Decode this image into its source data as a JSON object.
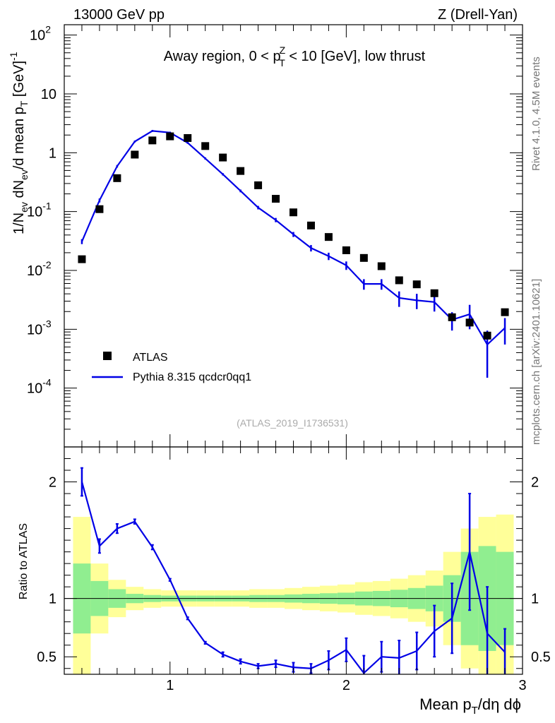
{
  "header": {
    "left": "13000 GeV pp",
    "right": "Z (Drell-Yan)"
  },
  "side_labels": {
    "rivet": "Rivet 4.1.0,  4.5M events",
    "mcplots": "mcplots.cern.ch [arXiv:2401.10621]"
  },
  "colors": {
    "mc": "#0000e6",
    "data": "#000000",
    "band_inner": "#90ee90",
    "band_outer": "#ffff99"
  },
  "chart_data": [
    {
      "type": "scatter",
      "title": "Away region, 0 < pTZ < 10 [GeV], low thrust",
      "title_parts": {
        "pre": "Away region, 0 < p",
        "sup": "Z",
        "sub": "T",
        "post": " < 10 [GeV], low thrust"
      },
      "ylabel": "1/Nev dNev/d mean pT [GeV]-1",
      "yscale": "log",
      "ylim": [
        1e-05,
        150
      ],
      "xlim": [
        0.4,
        3.0
      ],
      "yticks": [
        {
          "v": 100,
          "mant": "10",
          "exp": "2"
        },
        {
          "v": 10,
          "mant": "10",
          "exp": ""
        },
        {
          "v": 1,
          "mant": "1",
          "exp": ""
        },
        {
          "v": 0.1,
          "mant": "10",
          "exp": "-1"
        },
        {
          "v": 0.01,
          "mant": "10",
          "exp": "-2"
        },
        {
          "v": 0.001,
          "mant": "10",
          "exp": "-3"
        },
        {
          "v": 0.0001,
          "mant": "10",
          "exp": "-4"
        }
      ],
      "watermark": "(ATLAS_2019_I1736531)",
      "legend": {
        "position": "bottom-left",
        "data_label": "ATLAS",
        "mc_label": "Pythia 8.315 qcdcr0qq1"
      },
      "series": [
        {
          "name": "ATLAS",
          "kind": "markers",
          "x": [
            0.5,
            0.6,
            0.7,
            0.8,
            0.9,
            1.0,
            1.1,
            1.2,
            1.3,
            1.4,
            1.5,
            1.6,
            1.7,
            1.8,
            1.9,
            2.0,
            2.1,
            2.2,
            2.3,
            2.4,
            2.5,
            2.6,
            2.7,
            2.8,
            2.9
          ],
          "y": [
            0.0155,
            0.11,
            0.37,
            0.93,
            1.62,
            1.9,
            1.78,
            1.3,
            0.83,
            0.49,
            0.28,
            0.165,
            0.097,
            0.058,
            0.037,
            0.022,
            0.0163,
            0.0118,
            0.0068,
            0.0058,
            0.0041,
            0.0016,
            0.0013,
            0.00078,
            0.00195
          ]
        },
        {
          "name": "Pythia 8.315 qcdcr0qq1",
          "kind": "line",
          "x": [
            0.5,
            0.6,
            0.7,
            0.8,
            0.9,
            1.0,
            1.1,
            1.2,
            1.3,
            1.4,
            1.5,
            1.6,
            1.7,
            1.8,
            1.9,
            2.0,
            2.1,
            2.2,
            2.3,
            2.4,
            2.5,
            2.6,
            2.7,
            2.8,
            2.9
          ],
          "y": [
            0.031,
            0.155,
            0.59,
            1.55,
            2.35,
            2.2,
            1.48,
            0.8,
            0.43,
            0.225,
            0.117,
            0.072,
            0.041,
            0.024,
            0.0175,
            0.0122,
            0.0059,
            0.0059,
            0.0034,
            0.0031,
            0.0029,
            0.00145,
            0.0018,
            0.00055,
            0.00105
          ],
          "yerr": [
            0.003,
            0.012,
            0.03,
            0.06,
            0.09,
            0.08,
            0.06,
            0.035,
            0.02,
            0.012,
            0.008,
            0.006,
            0.004,
            0.003,
            0.0025,
            0.002,
            0.0012,
            0.0012,
            0.001,
            0.0009,
            0.0009,
            0.0005,
            0.0008,
            0.0004,
            0.0005
          ]
        }
      ]
    },
    {
      "type": "line",
      "ylabel": "Ratio to ATLAS",
      "xlabel": "Mean pT/dη dϕ",
      "xlabel_parts": {
        "pre": "Mean p",
        "sub": "T",
        "post": "/dη dϕ"
      },
      "xlim": [
        0.4,
        3.0
      ],
      "ylim": [
        0.35,
        2.3
      ],
      "xticks": [
        1,
        2,
        3
      ],
      "yticks": [
        0.5,
        1,
        2
      ],
      "reference_line": 1,
      "bins": [
        0.45,
        0.55,
        0.65,
        0.75,
        0.85,
        0.95,
        1.05,
        1.15,
        1.25,
        1.35,
        1.45,
        1.55,
        1.65,
        1.75,
        1.85,
        1.95,
        2.05,
        2.15,
        2.25,
        2.35,
        2.45,
        2.55,
        2.65,
        2.75,
        2.85,
        2.95
      ],
      "band_inner": {
        "lo": [
          0.7,
          0.85,
          0.92,
          0.96,
          0.97,
          0.975,
          0.975,
          0.975,
          0.975,
          0.975,
          0.97,
          0.97,
          0.965,
          0.96,
          0.955,
          0.95,
          0.94,
          0.935,
          0.925,
          0.91,
          0.89,
          0.8,
          0.6,
          0.55,
          0.6
        ],
        "hi": [
          1.3,
          1.15,
          1.08,
          1.04,
          1.03,
          1.025,
          1.025,
          1.025,
          1.025,
          1.025,
          1.03,
          1.03,
          1.035,
          1.04,
          1.045,
          1.05,
          1.06,
          1.065,
          1.075,
          1.09,
          1.11,
          1.2,
          1.4,
          1.45,
          1.4
        ]
      },
      "band_outer": {
        "lo": [
          0.3,
          0.7,
          0.84,
          0.9,
          0.92,
          0.93,
          0.93,
          0.93,
          0.93,
          0.93,
          0.92,
          0.92,
          0.91,
          0.9,
          0.89,
          0.88,
          0.86,
          0.85,
          0.83,
          0.8,
          0.76,
          0.6,
          0.4,
          0.3,
          0.28
        ],
        "hi": [
          1.7,
          1.3,
          1.16,
          1.1,
          1.08,
          1.07,
          1.07,
          1.07,
          1.07,
          1.07,
          1.08,
          1.08,
          1.09,
          1.1,
          1.11,
          1.12,
          1.14,
          1.15,
          1.17,
          1.2,
          1.24,
          1.4,
          1.6,
          1.7,
          1.72
        ]
      },
      "series": [
        {
          "name": "Pythia 8.315 qcdcr0qq1 / ATLAS",
          "x": [
            0.5,
            0.6,
            0.7,
            0.8,
            0.9,
            1.0,
            1.1,
            1.2,
            1.3,
            1.4,
            1.5,
            1.6,
            1.7,
            1.8,
            1.9,
            2.0,
            2.1,
            2.2,
            2.3,
            2.4,
            2.5,
            2.6,
            2.7,
            2.8,
            2.9
          ],
          "y": [
            2.0,
            1.45,
            1.6,
            1.66,
            1.44,
            1.16,
            0.83,
            0.62,
            0.52,
            0.46,
            0.42,
            0.44,
            0.41,
            0.4,
            0.47,
            0.56,
            0.36,
            0.5,
            0.49,
            0.55,
            0.72,
            0.83,
            1.4,
            0.7,
            0.54
          ],
          "yerr": [
            0.12,
            0.06,
            0.04,
            0.02,
            0.02,
            0.01,
            0.01,
            0.01,
            0.02,
            0.02,
            0.02,
            0.03,
            0.04,
            0.04,
            0.08,
            0.1,
            0.15,
            0.13,
            0.15,
            0.16,
            0.22,
            0.3,
            0.5,
            0.4,
            0.2
          ]
        }
      ]
    }
  ]
}
